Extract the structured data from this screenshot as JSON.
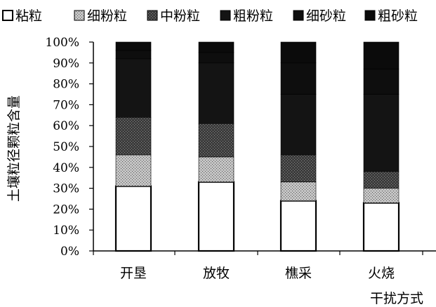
{
  "chart_data": {
    "type": "bar",
    "stacked": true,
    "percent": true,
    "categories": [
      "开垦",
      "放牧",
      "樵采",
      "火烧"
    ],
    "series": [
      {
        "name": "粘粒",
        "values": [
          31,
          33,
          24,
          23
        ],
        "color": "#ffffff"
      },
      {
        "name": "细粉粒",
        "values": [
          15,
          12,
          9,
          7
        ],
        "color": "#a8a8a8"
      },
      {
        "name": "中粉粒",
        "values": [
          18,
          16,
          13,
          8
        ],
        "color": "#555555"
      },
      {
        "name": "粗粉粒",
        "values": [
          28,
          29,
          29,
          37
        ],
        "color": "#111111"
      },
      {
        "name": "细砂粒",
        "values": [
          4,
          5,
          15,
          12
        ],
        "color": "#0c0c0c"
      },
      {
        "name": "粗砂粒",
        "values": [
          4,
          5,
          10,
          13
        ],
        "color": "#0a0a0a"
      }
    ],
    "xlabel": "干扰方式",
    "ylabel": "土壤粒径颗粒含量",
    "ylim": [
      0,
      100
    ],
    "yticks": [
      "0%",
      "10%",
      "20%",
      "30%",
      "40%",
      "50%",
      "60%",
      "70%",
      "80%",
      "90%",
      "100%"
    ],
    "legend_position": "top",
    "grid": false
  }
}
